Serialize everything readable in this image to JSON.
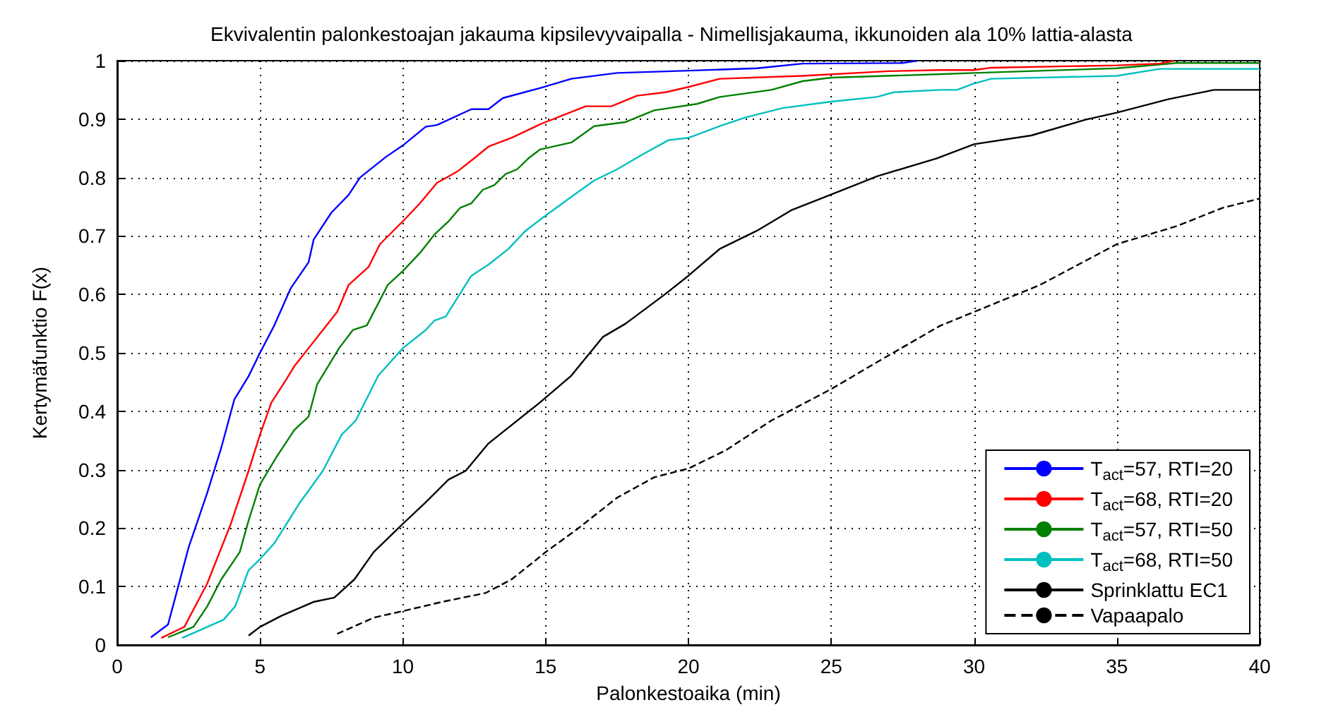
{
  "chart_data": {
    "type": "line",
    "title": "Ekvivalentin palonkestoajan jakauma kipsilevyvaipalla - Nimellisjakauma, ikkunoiden ala 10% lattia-alasta",
    "xlabel": "Palonkestoaika (min)",
    "ylabel": "Kertymäfunktio F(x)",
    "xlim": [
      0,
      40
    ],
    "xticks": [
      0,
      5,
      10,
      15,
      20,
      25,
      30,
      35,
      40
    ],
    "ylim": [
      0,
      1
    ],
    "yticks": [
      0,
      0.1,
      0.2,
      0.3,
      0.4,
      0.5,
      0.6,
      0.7,
      0.8,
      0.9,
      1
    ],
    "grid": true,
    "legend": "bottom right",
    "series": [
      {
        "name": "T$_{act}$=57, RTI=20",
        "color": "#0000ff",
        "line_style": "solid",
        "x": [
          1.18,
          1.78,
          2.5,
          3.15,
          3.64,
          4.1,
          4.6,
          5.0,
          5.5,
          6.07,
          6.7,
          6.88,
          7.5,
          8.1,
          8.5,
          9.4,
          10,
          10.8,
          11.2,
          12.4,
          13,
          13.5,
          14.8,
          15.9,
          17.5,
          20,
          22.4,
          24,
          27.5,
          28
        ],
        "values": [
          0.013,
          0.035,
          0.167,
          0.26,
          0.337,
          0.42,
          0.46,
          0.5,
          0.547,
          0.61,
          0.655,
          0.694,
          0.74,
          0.77,
          0.8,
          0.835,
          0.855,
          0.887,
          0.89,
          0.917,
          0.917,
          0.936,
          0.953,
          0.969,
          0.979,
          0.983,
          0.987,
          0.995,
          0.996,
          1
        ]
      },
      {
        "name": "T$_{act}$=68, RTI=20",
        "color": "#ff0000",
        "line_style": "solid",
        "x": [
          1.54,
          2.35,
          3.15,
          3.96,
          4.6,
          5.0,
          5.4,
          5.9,
          6.2,
          6.7,
          7.2,
          7.7,
          8.1,
          8.8,
          9.2,
          10,
          10.6,
          11.2,
          11.9,
          12.5,
          13,
          13.8,
          14.8,
          16.4,
          17.3,
          18.2,
          19.2,
          20,
          21.1,
          24,
          27,
          28.8,
          30,
          30.6,
          35,
          36.5,
          37
        ],
        "values": [
          0.012,
          0.031,
          0.105,
          0.205,
          0.298,
          0.36,
          0.415,
          0.453,
          0.477,
          0.508,
          0.539,
          0.57,
          0.616,
          0.647,
          0.686,
          0.725,
          0.756,
          0.791,
          0.81,
          0.833,
          0.853,
          0.868,
          0.891,
          0.922,
          0.922,
          0.94,
          0.946,
          0.955,
          0.969,
          0.974,
          0.982,
          0.984,
          0.984,
          0.988,
          0.992,
          0.995,
          1
        ]
      },
      {
        "name": "T$_{act}$=57, RTI=50",
        "color": "#008000",
        "line_style": "solid",
        "x": [
          1.78,
          2.67,
          3.15,
          3.64,
          4.29,
          4.6,
          5.0,
          5.58,
          6.2,
          6.7,
          7.0,
          7.77,
          8.25,
          8.74,
          9.47,
          10,
          10.6,
          11.1,
          11.6,
          12,
          12.4,
          12.8,
          13.2,
          13.6,
          14,
          14.4,
          14.8,
          15.9,
          16.7,
          17.8,
          18.8,
          20.3,
          21.1,
          22.9,
          24,
          25,
          28.9,
          30,
          35,
          37.1,
          40
        ],
        "values": [
          0.013,
          0.031,
          0.066,
          0.112,
          0.159,
          0.213,
          0.275,
          0.322,
          0.368,
          0.391,
          0.446,
          0.508,
          0.539,
          0.547,
          0.616,
          0.64,
          0.671,
          0.702,
          0.725,
          0.748,
          0.756,
          0.779,
          0.787,
          0.806,
          0.814,
          0.833,
          0.848,
          0.86,
          0.888,
          0.895,
          0.915,
          0.926,
          0.938,
          0.95,
          0.965,
          0.971,
          0.977,
          0.979,
          0.987,
          0.996,
          0.996
        ]
      },
      {
        "name": "T$_{act}$=68, RTI=50",
        "color": "#00bfbf",
        "line_style": "solid",
        "x": [
          2.27,
          3.72,
          4.13,
          4.6,
          5.0,
          5.5,
          5.9,
          6.4,
          7.2,
          7.86,
          8.35,
          9.14,
          10,
          10.8,
          11.1,
          11.5,
          12.4,
          13,
          13.7,
          14.3,
          15,
          15.9,
          16.7,
          17.5,
          18.3,
          19.3,
          20,
          21.1,
          22,
          23.3,
          25,
          26.6,
          27.2,
          28.8,
          29.4,
          30,
          30.6,
          35,
          36.5,
          40
        ],
        "values": [
          0.012,
          0.043,
          0.066,
          0.128,
          0.147,
          0.174,
          0.205,
          0.244,
          0.298,
          0.36,
          0.384,
          0.461,
          0.508,
          0.539,
          0.555,
          0.562,
          0.632,
          0.651,
          0.678,
          0.709,
          0.735,
          0.767,
          0.795,
          0.814,
          0.837,
          0.864,
          0.868,
          0.888,
          0.903,
          0.919,
          0.93,
          0.938,
          0.946,
          0.95,
          0.95,
          0.961,
          0.969,
          0.974,
          0.986,
          0.986
        ]
      },
      {
        "name": "Sprinklattu EC1",
        "color": "#000000",
        "line_style": "solid",
        "x": [
          4.6,
          5.0,
          5.75,
          6.9,
          7.6,
          8.3,
          8.98,
          9.95,
          10.8,
          11.6,
          12.2,
          13,
          14.8,
          15.9,
          17,
          17.8,
          19.2,
          20,
          21.1,
          22.4,
          23.6,
          25,
          26.6,
          28.7,
          30,
          32,
          33.9,
          35,
          36.8,
          38.4,
          40
        ],
        "values": [
          0.016,
          0.031,
          0.05,
          0.074,
          0.081,
          0.112,
          0.159,
          0.205,
          0.244,
          0.283,
          0.298,
          0.345,
          0.415,
          0.461,
          0.527,
          0.55,
          0.601,
          0.632,
          0.678,
          0.709,
          0.744,
          0.771,
          0.802,
          0.833,
          0.857,
          0.872,
          0.899,
          0.911,
          0.934,
          0.95,
          0.95
        ]
      },
      {
        "name": "Vapaapalo",
        "color": "#000000",
        "line_style": "dashed",
        "x": [
          7.7,
          9,
          10,
          11.4,
          12.9,
          13.8,
          14.6,
          15,
          16.1,
          17.5,
          18.8,
          20,
          21.3,
          22.9,
          25,
          26.6,
          28.8,
          30,
          32.3,
          35,
          37.1,
          38.7,
          40
        ],
        "values": [
          0.019,
          0.047,
          0.058,
          0.074,
          0.089,
          0.112,
          0.143,
          0.159,
          0.198,
          0.252,
          0.287,
          0.302,
          0.333,
          0.384,
          0.438,
          0.484,
          0.546,
          0.57,
          0.616,
          0.686,
          0.717,
          0.748,
          0.764
        ]
      }
    ]
  }
}
